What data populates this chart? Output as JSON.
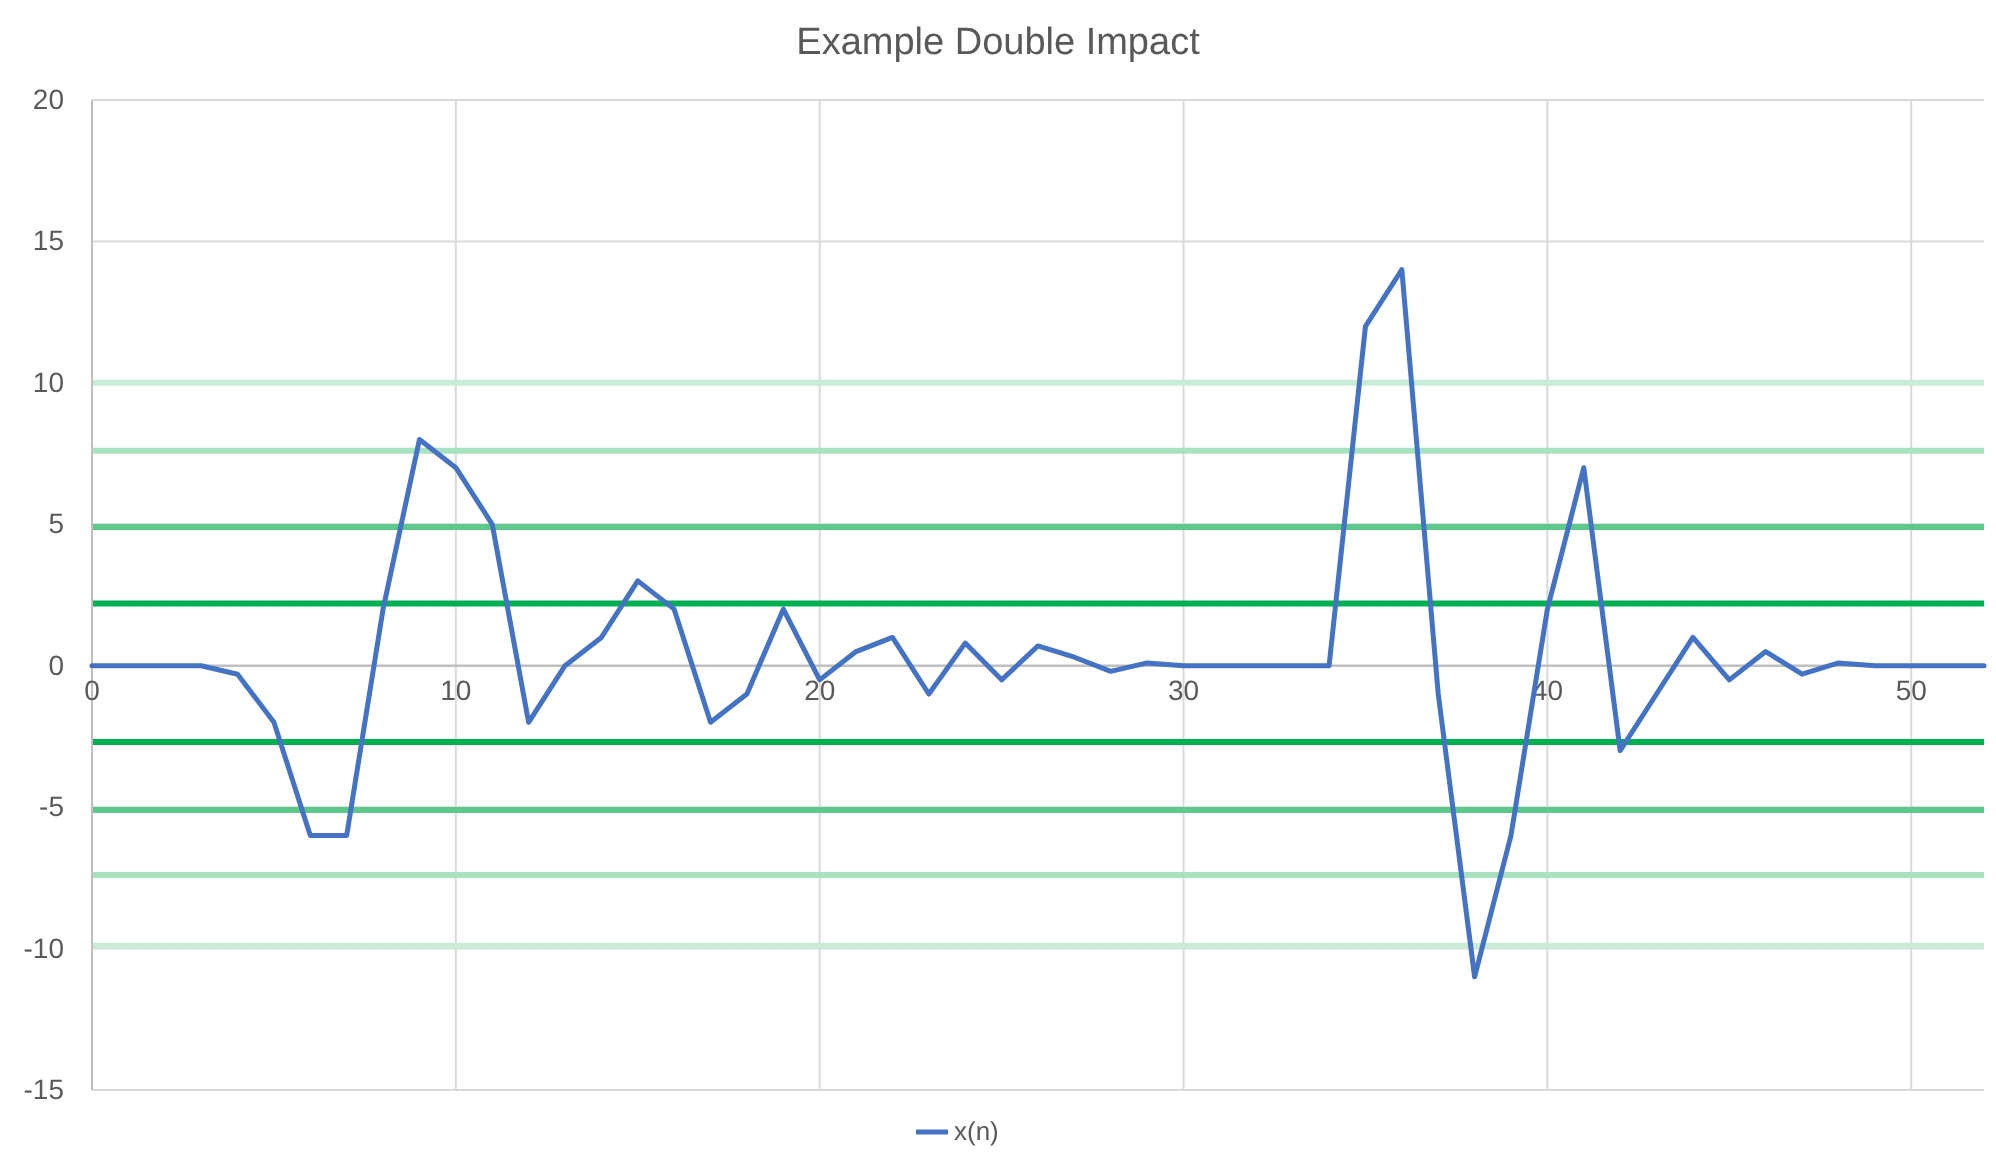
{
  "chart_data": {
    "type": "line",
    "title": "Example Double Impact",
    "x": [
      0,
      1,
      2,
      3,
      4,
      5,
      6,
      7,
      8,
      9,
      10,
      11,
      12,
      13,
      14,
      15,
      16,
      17,
      18,
      19,
      20,
      21,
      22,
      23,
      24,
      25,
      26,
      27,
      28,
      29,
      30,
      31,
      32,
      33,
      34,
      35,
      36,
      37,
      38,
      39,
      40,
      41,
      42,
      43,
      44,
      45,
      46,
      47,
      48,
      49,
      50,
      51,
      52
    ],
    "series": [
      {
        "name": "x(n)",
        "color": "#4472c4",
        "values": [
          0,
          0,
          0,
          0,
          -0.3,
          -2,
          -6,
          -6,
          2,
          8,
          7,
          5,
          -2,
          0,
          1,
          3,
          2,
          -2,
          -1,
          2,
          -0.5,
          0.5,
          1,
          -1,
          0.8,
          -0.5,
          0.7,
          0.3,
          -0.2,
          0.1,
          0,
          0,
          0,
          0,
          0,
          12,
          14,
          -1,
          -11,
          -6,
          2,
          7,
          -3,
          -1,
          1,
          -0.5,
          0.5,
          -0.3,
          0.1,
          0,
          0,
          0,
          0
        ]
      }
    ],
    "xlim": [
      0,
      52
    ],
    "xticks": [
      0,
      10,
      20,
      30,
      40,
      50
    ],
    "ylim": [
      -15,
      20
    ],
    "yticks": [
      -15,
      -10,
      -5,
      0,
      5,
      10,
      15,
      20
    ],
    "ref_lines": [
      {
        "axis": "y",
        "value": 10,
        "color": "#c8ecd6"
      },
      {
        "axis": "y",
        "value": 7.6,
        "color": "#a9e2c0"
      },
      {
        "axis": "y",
        "value": 4.9,
        "color": "#5cc98a"
      },
      {
        "axis": "y",
        "value": 2.2,
        "color": "#00b050"
      },
      {
        "axis": "y",
        "value": -2.7,
        "color": "#00b050"
      },
      {
        "axis": "y",
        "value": -5.1,
        "color": "#5cc98a"
      },
      {
        "axis": "y",
        "value": -7.4,
        "color": "#a9e2c0"
      },
      {
        "axis": "y",
        "value": -9.9,
        "color": "#c8ecd6"
      }
    ],
    "grid": true,
    "legend": "bottom",
    "marker": "none",
    "line_style": "solid"
  }
}
